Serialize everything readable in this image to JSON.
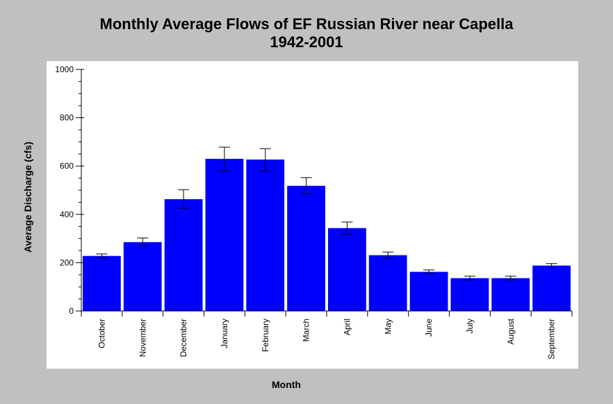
{
  "chart_data": {
    "type": "bar",
    "title": "Monthly Average Flows of EF Russian River near Capella",
    "subtitle": "1942-2001",
    "xlabel": "Month",
    "ylabel": "Average Discharge (cfs)",
    "ylim": [
      0,
      1000
    ],
    "yticks": [
      "0",
      "200",
      "400",
      "600",
      "800",
      "1000"
    ],
    "categories": [
      "October",
      "November",
      "December",
      "January",
      "February",
      "March",
      "April",
      "May",
      "June",
      "July",
      "August",
      "September"
    ],
    "values": [
      228,
      285,
      463,
      630,
      627,
      518,
      343,
      231,
      162,
      136,
      136,
      188
    ],
    "error_low": [
      218,
      270,
      425,
      580,
      580,
      485,
      318,
      218,
      155,
      129,
      129,
      180
    ],
    "error_high": [
      236,
      302,
      502,
      678,
      672,
      552,
      368,
      244,
      170,
      144,
      144,
      196
    ],
    "bar_color": "#0000ff",
    "plot_background": "#ffffff",
    "page_background": "#c0c0c0"
  }
}
